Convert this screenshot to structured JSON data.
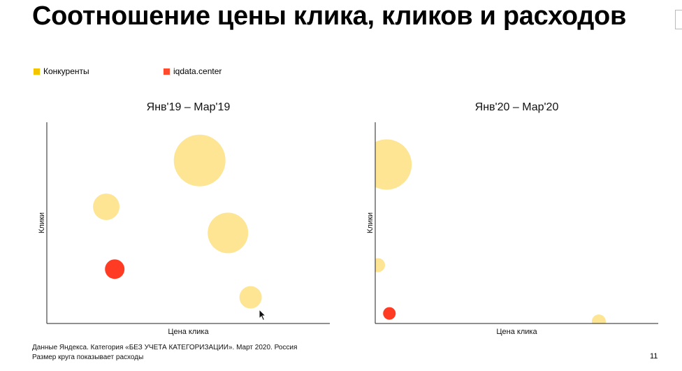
{
  "slide": {
    "title": "Соотношение цены клика, кликов и расходов",
    "page_number": "11",
    "footer_line1": "Данные Яндекса. Категория «БЕЗ УЧЕТА КАТЕГОРИЗАЦИИ». Март 2020. Россия",
    "footer_line2": "Размер круга показывает расходы"
  },
  "legend": [
    {
      "label": "Конкуренты",
      "color": "#f5c400"
    },
    {
      "label": "iqdata.center",
      "color": "#ff4a2e"
    }
  ],
  "colors": {
    "competitors_fill": "#fde594",
    "iqdata_fill": "#ff3b24",
    "axis": "#222222"
  },
  "chart_data": [
    {
      "type": "bubble",
      "title": "Янв'19 – Мар'19",
      "xlabel": "Цена клика",
      "ylabel": "Клики",
      "xlim": [
        0,
        100
      ],
      "ylim": [
        0,
        100
      ],
      "series": [
        {
          "name": "Конкуренты",
          "points": [
            {
              "x": 54,
              "y": 81,
              "size": 37
            },
            {
              "x": 21,
              "y": 58,
              "size": 19
            },
            {
              "x": 64,
              "y": 45,
              "size": 29
            },
            {
              "x": 72,
              "y": 13,
              "size": 16
            }
          ]
        },
        {
          "name": "iqdata.center",
          "points": [
            {
              "x": 24,
              "y": 27,
              "size": 14
            }
          ]
        }
      ]
    },
    {
      "type": "bubble",
      "title": "Янв'20 – Мар'20",
      "xlabel": "Цена клика",
      "ylabel": "Клики",
      "xlim": [
        0,
        100
      ],
      "ylim": [
        0,
        100
      ],
      "series": [
        {
          "name": "Конкуренты",
          "points": [
            {
              "x": 4,
              "y": 79,
              "size": 36
            },
            {
              "x": 1,
              "y": 29,
              "size": 10
            },
            {
              "x": 79,
              "y": 1,
              "size": 10
            }
          ]
        },
        {
          "name": "iqdata.center",
          "points": [
            {
              "x": 5,
              "y": 5,
              "size": 9
            }
          ]
        }
      ]
    }
  ]
}
